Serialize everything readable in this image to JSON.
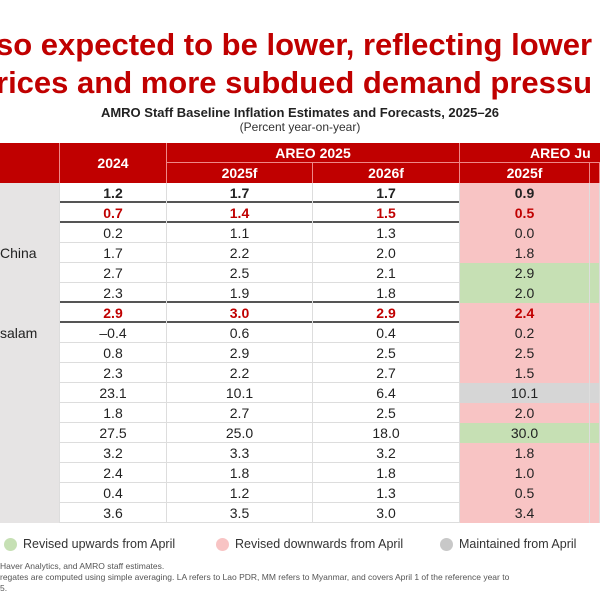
{
  "title_lines": [
    "so expected to be lower, reflecting lower",
    "rices and more subdued demand pressu"
  ],
  "table_title": "AMRO Staff Baseline Inflation Estimates and Forecasts, 2025–26",
  "table_subtitle": "(Percent year-on-year)",
  "headers": {
    "y2024": "2024",
    "areo2025": "AREO 2025",
    "areo2025_f25": "2025f",
    "areo2025_f26": "2026f",
    "areo_jul": "AREO Ju",
    "areo_jul_f25": "2025f"
  },
  "rows": [
    {
      "label": "",
      "v": [
        "1.2",
        "1.7",
        "1.7",
        "0.9"
      ],
      "style": "bold",
      "rev": "down"
    },
    {
      "label": "",
      "v": [
        "0.7",
        "1.4",
        "1.5",
        "0.5"
      ],
      "style": "red",
      "rev": "down"
    },
    {
      "label": "",
      "v": [
        "0.2",
        "1.1",
        "1.3",
        "0.0"
      ],
      "style": "",
      "rev": "down"
    },
    {
      "label": "China",
      "v": [
        "1.7",
        "2.2",
        "2.0",
        "1.8"
      ],
      "style": "",
      "rev": "down"
    },
    {
      "label": "",
      "v": [
        "2.7",
        "2.5",
        "2.1",
        "2.9"
      ],
      "style": "",
      "rev": "up"
    },
    {
      "label": "",
      "v": [
        "2.3",
        "1.9",
        "1.8",
        "2.0"
      ],
      "style": "",
      "rev": "up"
    },
    {
      "label": "",
      "v": [
        "2.9",
        "3.0",
        "2.9",
        "2.4"
      ],
      "style": "red",
      "rev": "down"
    },
    {
      "label": "salam",
      "v": [
        "–0.4",
        "0.6",
        "0.4",
        "0.2"
      ],
      "style": "",
      "rev": "down"
    },
    {
      "label": "",
      "v": [
        "0.8",
        "2.9",
        "2.5",
        "2.5"
      ],
      "style": "",
      "rev": "down"
    },
    {
      "label": "",
      "v": [
        "2.3",
        "2.2",
        "2.7",
        "1.5"
      ],
      "style": "",
      "rev": "down"
    },
    {
      "label": "",
      "v": [
        "23.1",
        "10.1",
        "6.4",
        "10.1"
      ],
      "style": "",
      "rev": "same"
    },
    {
      "label": "",
      "v": [
        "1.8",
        "2.7",
        "2.5",
        "2.0"
      ],
      "style": "",
      "rev": "down"
    },
    {
      "label": "",
      "v": [
        "27.5",
        "25.0",
        "18.0",
        "30.0"
      ],
      "style": "",
      "rev": "up"
    },
    {
      "label": "",
      "v": [
        "3.2",
        "3.3",
        "3.2",
        "1.8"
      ],
      "style": "",
      "rev": "down"
    },
    {
      "label": "",
      "v": [
        "2.4",
        "1.8",
        "1.8",
        "1.0"
      ],
      "style": "",
      "rev": "down"
    },
    {
      "label": "",
      "v": [
        "0.4",
        "1.2",
        "1.3",
        "0.5"
      ],
      "style": "",
      "rev": "down"
    },
    {
      "label": "",
      "v": [
        "3.6",
        "3.5",
        "3.0",
        "3.4"
      ],
      "style": "",
      "rev": "down"
    }
  ],
  "legend": [
    {
      "label": "Revised upwards from April",
      "color": "#c6e0b4"
    },
    {
      "label": "Revised downwards from April",
      "color": "#f8c4c4"
    },
    {
      "label": "Maintained from April",
      "color": "#c8c8c8"
    }
  ],
  "notes": [
    "Haver Analytics, and AMRO staff estimates.",
    "regates are computed using simple averaging. LA refers to Lao PDR, MM refers to Myanmar, and covers April 1 of the reference year to",
    "5."
  ],
  "colors": {
    "accent": "#c00000",
    "up": "#c6e0b4",
    "down": "#f8c4c4",
    "same": "#d6d6d6"
  }
}
